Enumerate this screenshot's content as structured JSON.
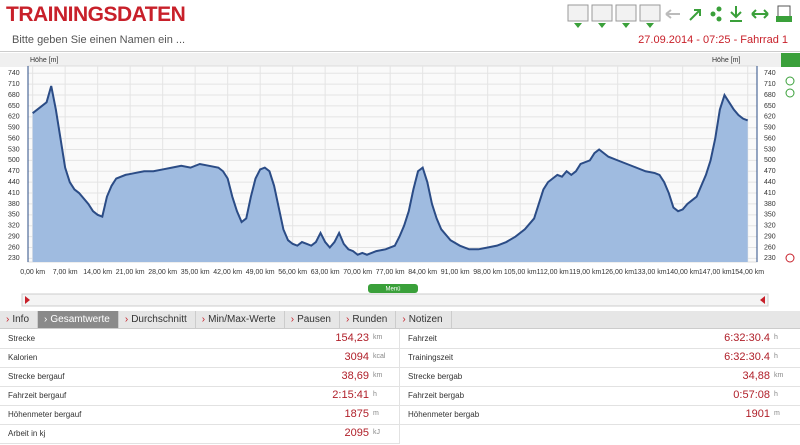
{
  "header": {
    "title": "TRAININGSDATEN",
    "name_placeholder": "Bitte geben Sie einen Namen ein ...",
    "date": "27.09.2014 - 07:25 - Fahrrad 1"
  },
  "chart_data": {
    "type": "area",
    "ylabel": "Höhe [m]",
    "color": "#9fbbe0",
    "line_color": "#2b4c86",
    "grid": true,
    "x": [
      0,
      1,
      2,
      3,
      4,
      5,
      6,
      7,
      8,
      9,
      10,
      12,
      13,
      14,
      15,
      16,
      17,
      18,
      20,
      22,
      24,
      26,
      28,
      30,
      32,
      34,
      36,
      38,
      40,
      41,
      42,
      43,
      44,
      45,
      46,
      47,
      48,
      49,
      50,
      51,
      52,
      53,
      54,
      55,
      56,
      57,
      58,
      59,
      60,
      61,
      62,
      63,
      64,
      65,
      66,
      67,
      68,
      69,
      70,
      71,
      72,
      73,
      74,
      76,
      78,
      79,
      80,
      81,
      82,
      83,
      84,
      85,
      86,
      87,
      88,
      90,
      92,
      94,
      96,
      98,
      100,
      102,
      104,
      106,
      108,
      109,
      110,
      111,
      112,
      113,
      114,
      115,
      116,
      117,
      118,
      120,
      121,
      122,
      123,
      124,
      126,
      128,
      130,
      132,
      134,
      135,
      136,
      137,
      138,
      139,
      140,
      141,
      142,
      143,
      144,
      145,
      146,
      147,
      148,
      149,
      150,
      151,
      152,
      153,
      154
    ],
    "values": [
      630,
      640,
      650,
      660,
      705,
      640,
      560,
      480,
      440,
      420,
      410,
      380,
      360,
      350,
      345,
      400,
      430,
      450,
      460,
      465,
      470,
      470,
      475,
      480,
      485,
      480,
      490,
      485,
      480,
      470,
      450,
      400,
      360,
      330,
      340,
      400,
      450,
      475,
      480,
      470,
      430,
      370,
      310,
      280,
      270,
      265,
      275,
      270,
      265,
      275,
      300,
      275,
      260,
      275,
      300,
      270,
      255,
      250,
      240,
      245,
      240,
      245,
      250,
      255,
      265,
      290,
      320,
      360,
      420,
      470,
      480,
      440,
      380,
      340,
      310,
      280,
      265,
      255,
      255,
      260,
      265,
      275,
      290,
      310,
      340,
      380,
      420,
      440,
      450,
      460,
      455,
      470,
      460,
      470,
      490,
      500,
      520,
      530,
      520,
      510,
      500,
      490,
      480,
      470,
      465,
      460,
      440,
      410,
      370,
      360,
      365,
      380,
      390,
      400,
      430,
      460,
      500,
      560,
      640,
      680,
      660,
      640,
      625,
      615,
      610
    ],
    "xlim": [
      -1,
      156
    ],
    "ylim": [
      220,
      760
    ],
    "yticks": [
      230,
      260,
      290,
      320,
      350,
      380,
      410,
      440,
      470,
      500,
      530,
      560,
      590,
      620,
      650,
      680,
      710,
      740
    ],
    "xticks": [
      {
        "value": 0,
        "label": "0,00 km"
      },
      {
        "value": 7,
        "label": "7,00 km"
      },
      {
        "value": 14,
        "label": "14,00 km"
      },
      {
        "value": 21,
        "label": "21,00 km"
      },
      {
        "value": 28,
        "label": "28,00 km"
      },
      {
        "value": 35,
        "label": "35,00 km"
      },
      {
        "value": 42,
        "label": "42,00 km"
      },
      {
        "value": 49,
        "label": "49,00 km"
      },
      {
        "value": 56,
        "label": "56,00 km"
      },
      {
        "value": 63,
        "label": "63,00 km"
      },
      {
        "value": 70,
        "label": "70,00 km"
      },
      {
        "value": 77,
        "label": "77,00 km"
      },
      {
        "value": 84,
        "label": "84,00 km"
      },
      {
        "value": 91,
        "label": "91,00 km"
      },
      {
        "value": 98,
        "label": "98,00 km"
      },
      {
        "value": 105,
        "label": "105,00 km"
      },
      {
        "value": 112,
        "label": "112,00 km"
      },
      {
        "value": 119,
        "label": "119,00 km"
      },
      {
        "value": 126,
        "label": "126,00 km"
      },
      {
        "value": 133,
        "label": "133,00 km"
      },
      {
        "value": 140,
        "label": "140,00 km"
      },
      {
        "value": 147,
        "label": "147,00 km"
      },
      {
        "value": 154,
        "label": "154,00 km"
      }
    ]
  },
  "menu": "Menü",
  "tabs": [
    "Info",
    "Gesamtwerte",
    "Durchschnitt",
    "Min/Max-Werte",
    "Pausen",
    "Runden",
    "Notizen"
  ],
  "table": {
    "left": [
      [
        "Strecke",
        "154,23",
        "km"
      ],
      [
        "Kalorien",
        "3094",
        "kcal"
      ],
      [
        "Strecke bergauf",
        "38,69",
        "km"
      ],
      [
        "Fahrzeit bergauf",
        "2:15:41",
        "h"
      ],
      [
        "Höhenmeter bergauf",
        "1875",
        "m"
      ],
      [
        "Arbeit in kj",
        "2095",
        "kJ"
      ]
    ],
    "right": [
      [
        "Fahrzeit",
        "6:32:30.4",
        "h"
      ],
      [
        "Trainingszeit",
        "6:32:30.4",
        "h"
      ],
      [
        "Strecke bergab",
        "34,88",
        "km"
      ],
      [
        "Fahrzeit bergab",
        "0:57:08",
        "h"
      ],
      [
        "Höhenmeter bergab",
        "1901",
        "m"
      ]
    ]
  }
}
